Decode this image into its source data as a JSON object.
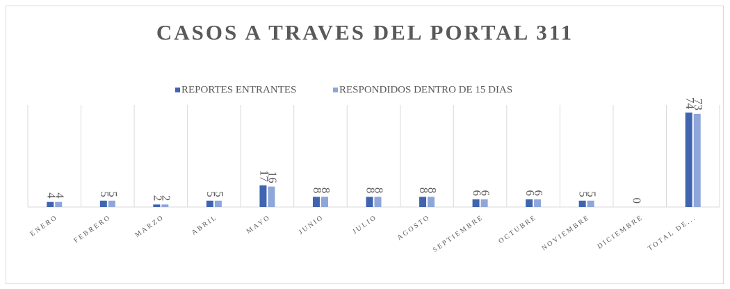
{
  "chart_data": {
    "type": "bar",
    "title": "CASOS A TRAVES DEL PORTAL 311",
    "categories": [
      "ENERO",
      "FEBRERO",
      "MARZO",
      "ABRIL",
      "MAYO",
      "JUNIO",
      "JULIO",
      "AGOSTO",
      "SEPTIEMBRE",
      "OCTUBRE",
      "NOVIEMBRE",
      "DICIEMBRE",
      "TOTAL DE..."
    ],
    "series": [
      {
        "name": "REPORTES ENTRANTES",
        "color": "#4064b0",
        "values": [
          4,
          5,
          2,
          5,
          17,
          8,
          8,
          8,
          6,
          6,
          5,
          0,
          74
        ]
      },
      {
        "name": "RESPONDIDOS DENTRO DE 15 DIAS",
        "color": "#8ea6da",
        "values": [
          4,
          5,
          2,
          5,
          16,
          8,
          8,
          8,
          6,
          6,
          5,
          null,
          73
        ]
      }
    ],
    "ylim": [
      0,
      80
    ],
    "legend": "top"
  }
}
